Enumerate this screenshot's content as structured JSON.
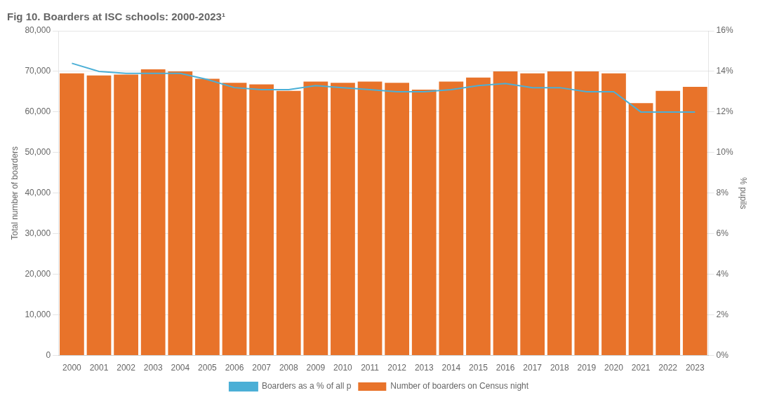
{
  "chart_data": {
    "type": "bar",
    "title": "Fig 10. Boarders at ISC schools: 2000-2023¹",
    "categories": [
      2000,
      2001,
      2002,
      2003,
      2004,
      2005,
      2006,
      2007,
      2008,
      2009,
      2010,
      2011,
      2012,
      2013,
      2014,
      2015,
      2016,
      2017,
      2018,
      2019,
      2020,
      2021,
      2022,
      2023
    ],
    "series": [
      {
        "name": "Number of boarders on Census night",
        "type": "bar",
        "color": "#E8732A",
        "values": [
          69500,
          69000,
          69200,
          70500,
          70000,
          68200,
          67200,
          66800,
          65200,
          67500,
          67200,
          67500,
          67200,
          65500,
          67500,
          68500,
          70000,
          69500,
          70000,
          70000,
          69500,
          62200,
          65200,
          66200
        ]
      },
      {
        "name": "Boarders as a % of all p",
        "type": "line",
        "color": "#4BAFD6",
        "axis": "y2",
        "values": [
          14.4,
          14.0,
          13.9,
          13.9,
          13.9,
          13.6,
          13.2,
          13.1,
          13.1,
          13.3,
          13.2,
          13.1,
          13.0,
          13.0,
          13.1,
          13.3,
          13.4,
          13.2,
          13.2,
          13.0,
          13.0,
          12.0,
          12.0,
          12.0
        ]
      }
    ],
    "ylabel": "Total number of boarders",
    "y2label": "% pupils",
    "ylim": [
      0,
      80000
    ],
    "yticks": [
      0,
      {
        "value": 10000,
        "label": "10,000"
      },
      {
        "value": 20000,
        "label": "20,000"
      },
      {
        "value": 30000,
        "label": "30,000"
      },
      {
        "value": 40000,
        "label": "40,000"
      },
      {
        "value": 50000,
        "label": "50,000"
      },
      {
        "value": 60000,
        "label": "60,000"
      },
      {
        "value": 70000,
        "label": "70,000"
      },
      {
        "value": 80000,
        "label": "80,000"
      }
    ],
    "y2lim": [
      0,
      16
    ],
    "y2ticks": [
      {
        "value": 0,
        "label": "0%"
      },
      {
        "value": 2,
        "label": "2%"
      },
      {
        "value": 4,
        "label": "4%"
      },
      {
        "value": 6,
        "label": "6%"
      },
      {
        "value": 8,
        "label": "8%"
      },
      {
        "value": 10,
        "label": "10%"
      },
      {
        "value": 12,
        "label": "12%"
      },
      {
        "value": 14,
        "label": "14%"
      },
      {
        "value": 16,
        "label": "16%"
      }
    ],
    "grid": true,
    "legend": "bottom"
  }
}
